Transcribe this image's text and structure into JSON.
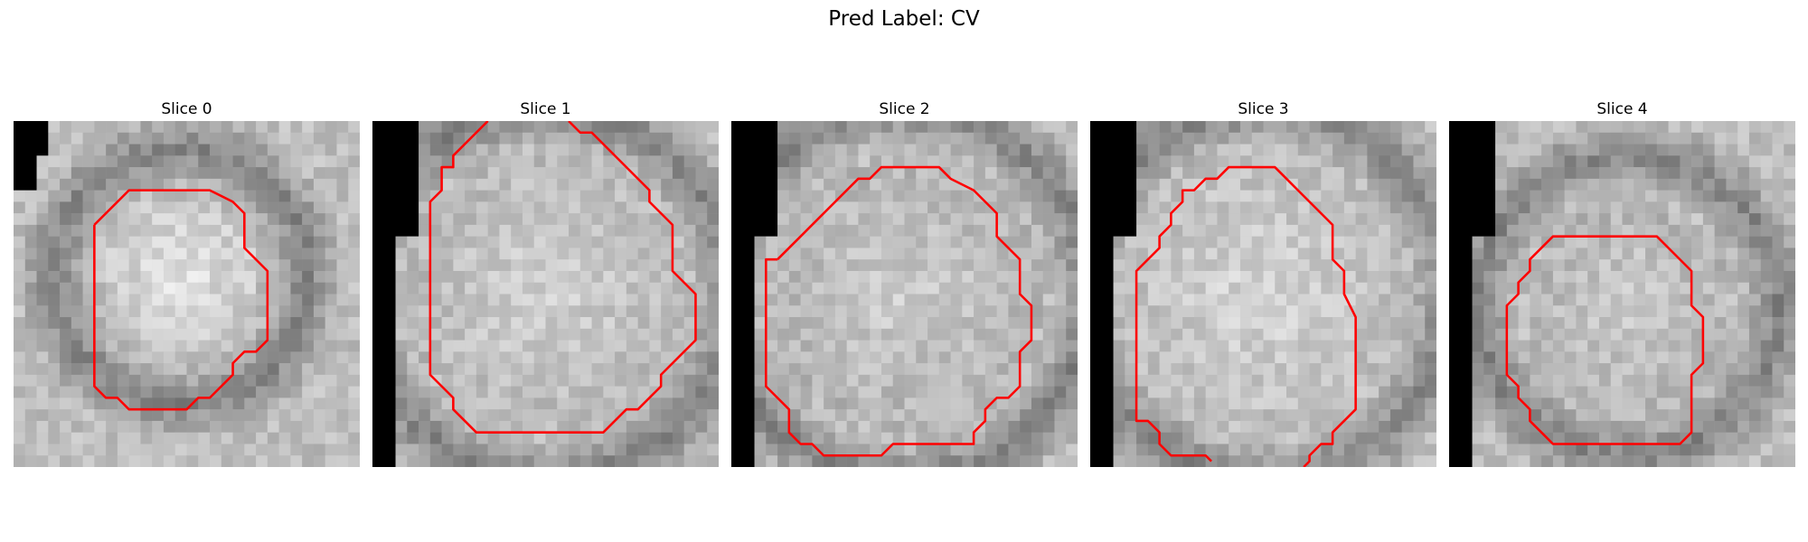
{
  "figure": {
    "title": "Pred Label: CV"
  },
  "panels": [
    {
      "title": "Slice 0"
    },
    {
      "title": "Slice 1"
    },
    {
      "title": "Slice 2"
    },
    {
      "title": "Slice 3"
    },
    {
      "title": "Slice 4"
    }
  ],
  "colors": {
    "contour": "#ff0000",
    "padding": "#000000"
  }
}
